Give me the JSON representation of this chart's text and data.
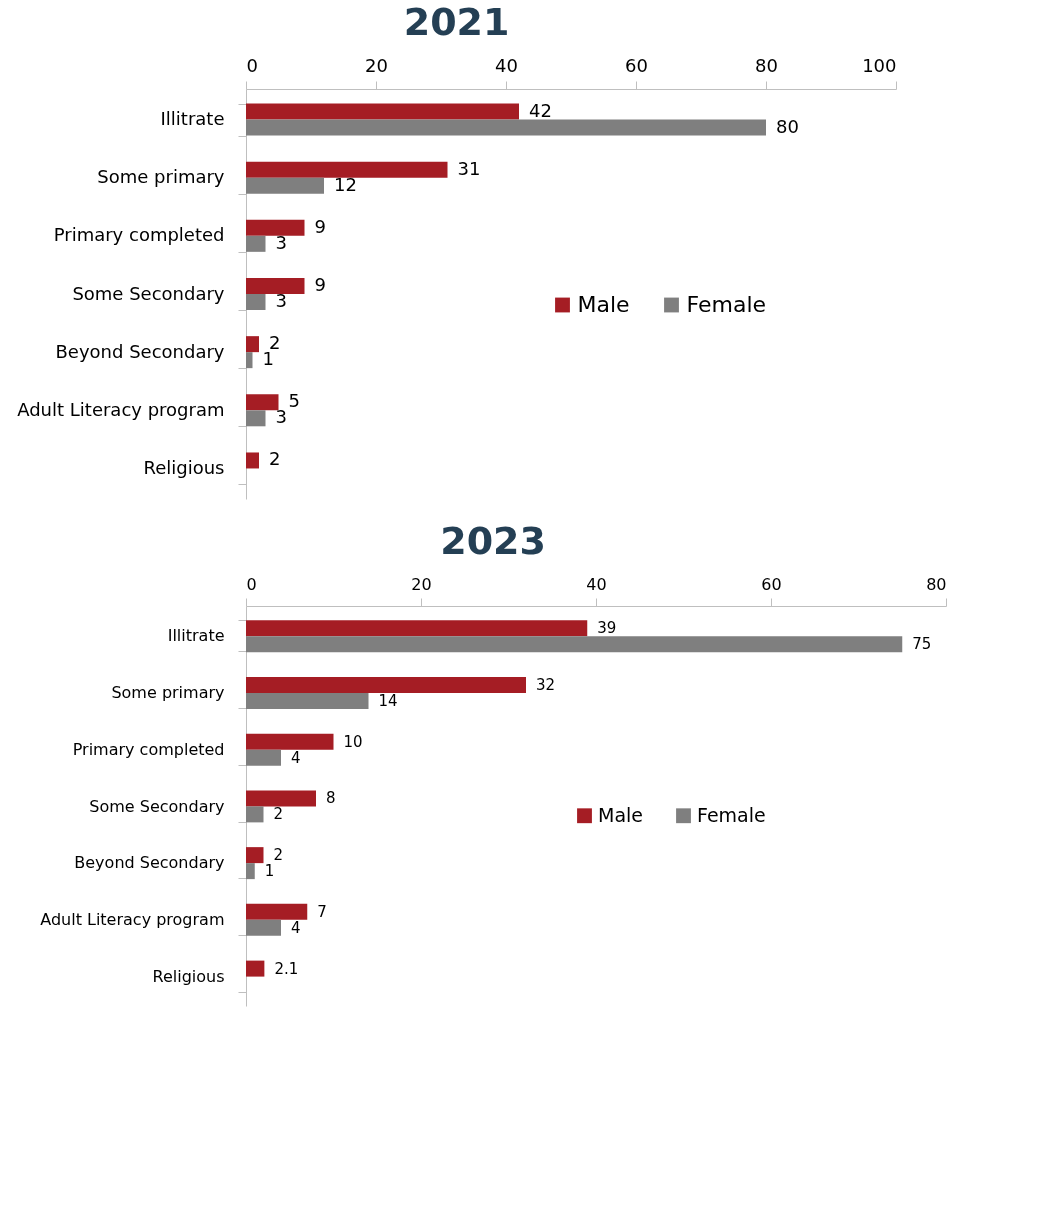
{
  "chart_data": [
    {
      "type": "bar",
      "orientation": "horizontal",
      "title": "2021",
      "categories": [
        "Illitrate",
        "Some primary",
        "Primary completed",
        "Some Secondary",
        "Beyond Secondary",
        "Adult Literacy program",
        "Religious"
      ],
      "series": [
        {
          "name": "Male",
          "color": "#a51d24",
          "values": [
            42,
            31,
            9,
            9,
            2,
            5,
            2
          ]
        },
        {
          "name": "Female",
          "color": "#7f7f7f",
          "values": [
            80,
            12,
            3,
            3,
            1,
            3,
            null
          ]
        }
      ],
      "xlim": [
        0,
        100
      ],
      "xticks": [
        0,
        20,
        40,
        60,
        80,
        100
      ],
      "data_labels": true,
      "legend": "right",
      "grid": false
    },
    {
      "type": "bar",
      "orientation": "horizontal",
      "title": "2023",
      "categories": [
        "Illitrate",
        "Some primary",
        "Primary completed",
        "Some Secondary",
        "Beyond Secondary",
        "Adult Literacy program",
        "Religious"
      ],
      "series": [
        {
          "name": "Male",
          "color": "#a51d24",
          "values": [
            39,
            32,
            10,
            8,
            2,
            7,
            2.1
          ]
        },
        {
          "name": "Female",
          "color": "#7f7f7f",
          "values": [
            75,
            14,
            4,
            2,
            1,
            4,
            null
          ]
        }
      ],
      "xlim": [
        0,
        80
      ],
      "xticks": [
        0,
        20,
        40,
        60,
        80
      ],
      "data_labels": true,
      "legend": "right",
      "grid": false
    }
  ]
}
